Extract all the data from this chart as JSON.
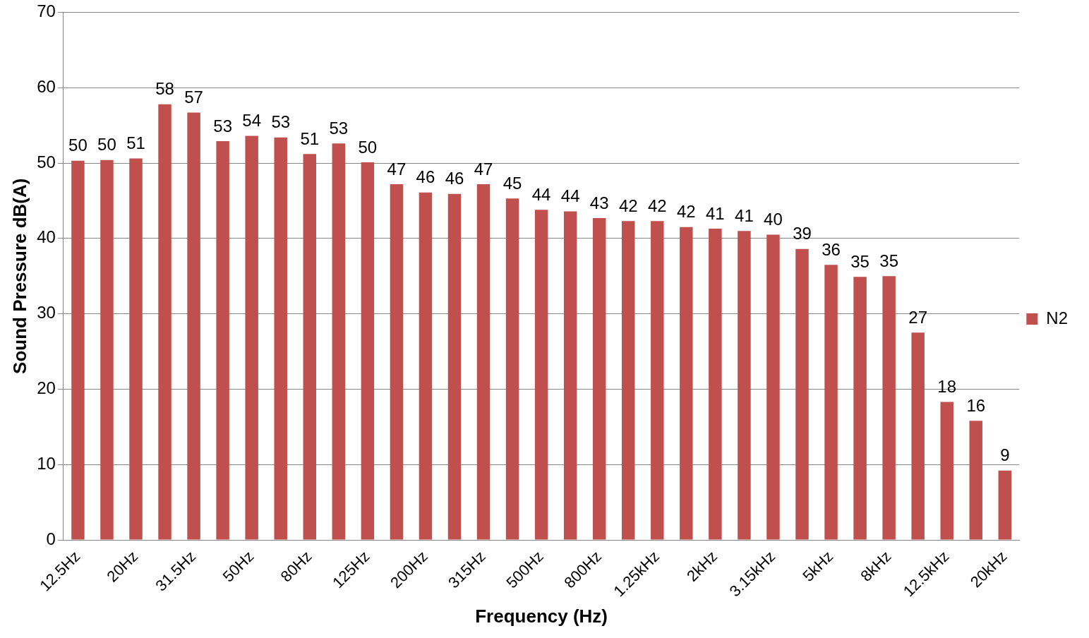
{
  "chart_data": {
    "type": "bar",
    "xlabel": "Frequency (Hz)",
    "ylabel": "Sound Pressure dB(A)",
    "categories": [
      "12.5Hz",
      null,
      "20Hz",
      null,
      "31.5Hz",
      null,
      "50Hz",
      null,
      "80Hz",
      null,
      "125Hz",
      null,
      "200Hz",
      null,
      "315Hz",
      null,
      "500Hz",
      null,
      "800Hz",
      null,
      "1.25kHz",
      null,
      "2kHz",
      null,
      "3.15kHz",
      null,
      "5kHz",
      null,
      "8kHz",
      null,
      "12.5kHz",
      null,
      "20kHz"
    ],
    "series": [
      {
        "name": "N2",
        "color": "#c0504d",
        "values": [
          50.3,
          50.4,
          50.6,
          57.8,
          56.7,
          52.9,
          53.6,
          53.4,
          51.2,
          52.6,
          50.1,
          47.2,
          46.1,
          45.9,
          47.2,
          45.3,
          43.8,
          43.6,
          42.7,
          42.3,
          42.3,
          41.5,
          41.3,
          41.0,
          40.5,
          38.6,
          36.5,
          34.9,
          35.0,
          27.5,
          18.3,
          15.8,
          9.2
        ],
        "value_labels": [
          "50",
          "50",
          "51",
          "58",
          "57",
          "53",
          "54",
          "53",
          "51",
          "53",
          "50",
          "47",
          "46",
          "46",
          "47",
          "45",
          "44",
          "44",
          "43",
          "42",
          "42",
          "42",
          "41",
          "41",
          "40",
          "39",
          "36",
          "35",
          "35",
          "27",
          "18",
          "16",
          "9"
        ]
      }
    ],
    "ylim": [
      0,
      70
    ],
    "yticks": [
      0,
      10,
      20,
      30,
      40,
      50,
      60,
      70
    ],
    "grid": "y",
    "legend": "right"
  }
}
